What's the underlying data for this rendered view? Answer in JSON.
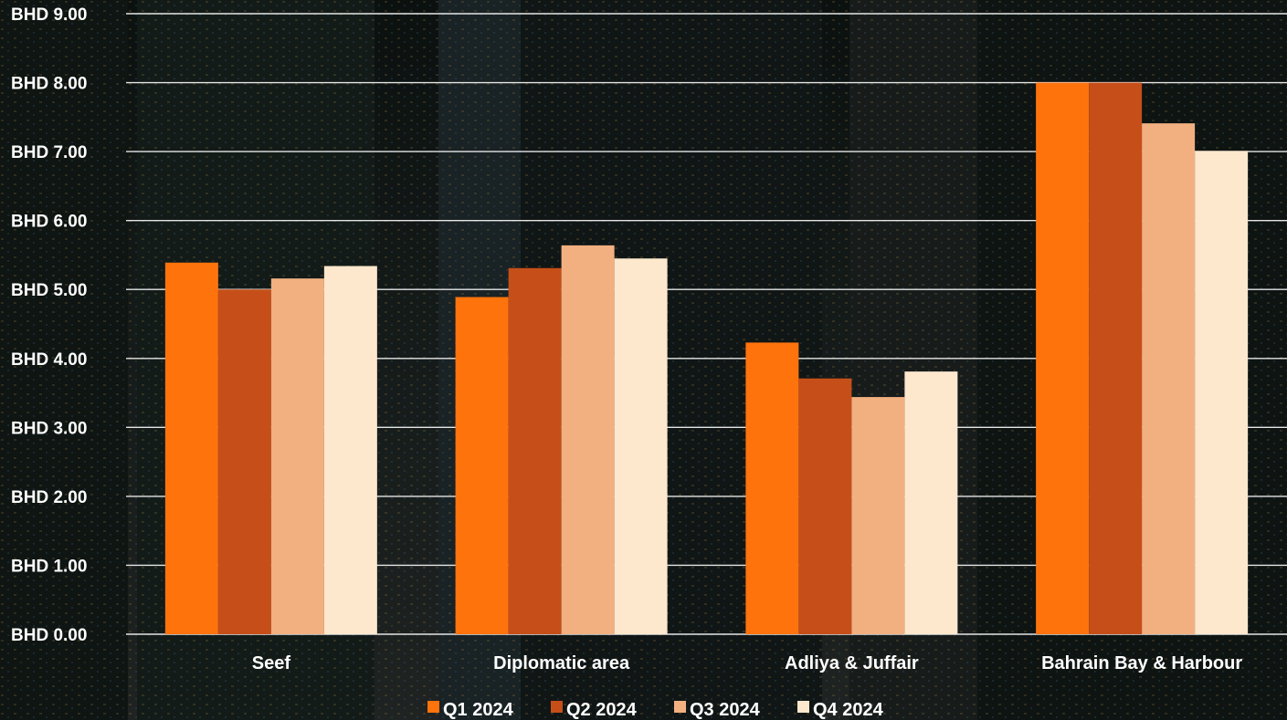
{
  "chart_data": {
    "type": "bar",
    "title": "",
    "xlabel": "",
    "ylabel": "",
    "categories": [
      "Seef",
      "Diplomatic area",
      "Adliya & Juffair",
      "Bahrain Bay & Harbour"
    ],
    "series": [
      {
        "name": "Q1 2024",
        "color": "#ff730d",
        "values": [
          5.39,
          4.89,
          4.23,
          8.0
        ]
      },
      {
        "name": "Q2 2024",
        "color": "#c64f19",
        "values": [
          5.0,
          5.31,
          3.71,
          8.0
        ]
      },
      {
        "name": "Q3 2024",
        "color": "#f2b081",
        "values": [
          5.16,
          5.64,
          3.44,
          7.41
        ]
      },
      {
        "name": "Q4 2024",
        "color": "#fde8cd",
        "values": [
          5.34,
          5.45,
          3.81,
          7.01
        ]
      }
    ],
    "ylim": [
      0,
      9
    ],
    "yticks": [
      0,
      1,
      2,
      3,
      4,
      5,
      6,
      7,
      8,
      9
    ],
    "ytick_labels": [
      "BHD 0.00",
      "BHD 1.00",
      "BHD 2.00",
      "BHD 3.00",
      "BHD 4.00",
      "BHD 5.00",
      "BHD 6.00",
      "BHD 7.00",
      "BHD 8.00",
      "BHD 9.00"
    ],
    "grid": true,
    "legend_position": "bottom",
    "gridline_color": "#e6e6e6",
    "text_color": "#ffffff",
    "background": "dark city skyline photo at night"
  }
}
